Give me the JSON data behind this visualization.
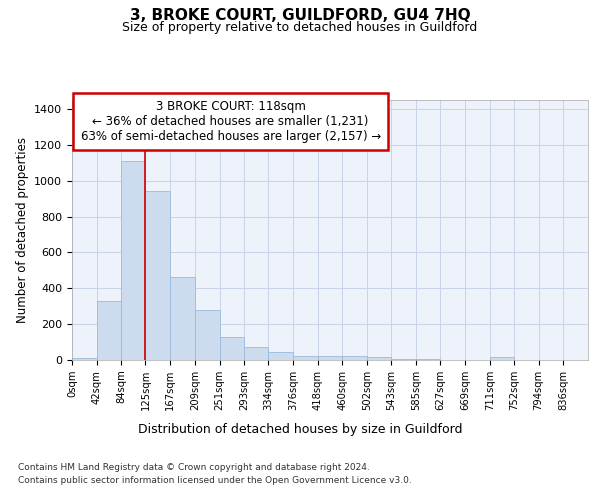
{
  "title": "3, BROKE COURT, GUILDFORD, GU4 7HQ",
  "subtitle": "Size of property relative to detached houses in Guildford",
  "xlabel": "Distribution of detached houses by size in Guildford",
  "ylabel": "Number of detached properties",
  "bar_color": "#ccdcee",
  "bar_edge_color": "#99bbdd",
  "grid_color": "#c8d4e8",
  "background_color": "#eef2fa",
  "annotation_line1": "3 BROKE COURT: 118sqm",
  "annotation_line2": "← 36% of detached houses are smaller (1,231)",
  "annotation_line3": "63% of semi-detached houses are larger (2,157) →",
  "annotation_box_color": "#ffffff",
  "annotation_border_color": "#cc0000",
  "red_line_x": 125,
  "categories": [
    "0sqm",
    "42sqm",
    "84sqm",
    "125sqm",
    "167sqm",
    "209sqm",
    "251sqm",
    "293sqm",
    "334sqm",
    "376sqm",
    "418sqm",
    "460sqm",
    "502sqm",
    "543sqm",
    "585sqm",
    "627sqm",
    "669sqm",
    "711sqm",
    "752sqm",
    "794sqm",
    "836sqm"
  ],
  "bin_edges": [
    0,
    42,
    84,
    125,
    167,
    209,
    251,
    293,
    334,
    376,
    418,
    460,
    502,
    543,
    585,
    627,
    669,
    711,
    752,
    794,
    836,
    878
  ],
  "values": [
    10,
    330,
    1110,
    945,
    465,
    280,
    130,
    70,
    42,
    22,
    25,
    25,
    18,
    5,
    5,
    2,
    0,
    15,
    0,
    0,
    0
  ],
  "ylim": [
    0,
    1450
  ],
  "yticks": [
    0,
    200,
    400,
    600,
    800,
    1000,
    1200,
    1400
  ],
  "footer_line1": "Contains HM Land Registry data © Crown copyright and database right 2024.",
  "footer_line2": "Contains public sector information licensed under the Open Government Licence v3.0."
}
